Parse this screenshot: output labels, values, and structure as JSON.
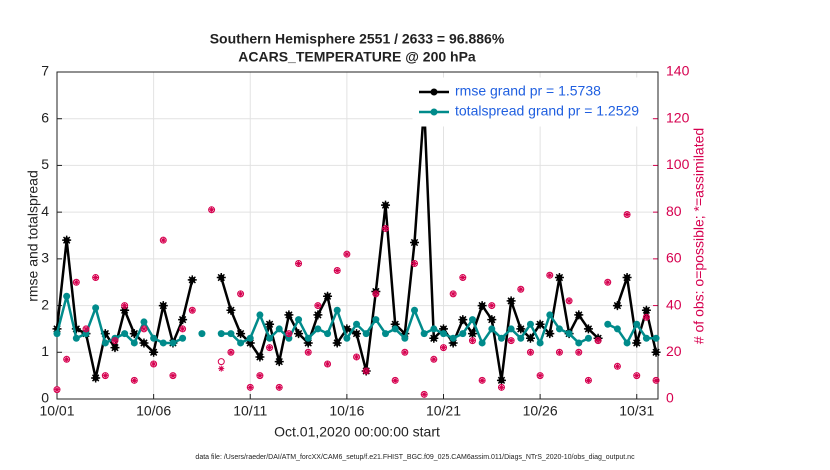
{
  "chart_data": {
    "type": "line",
    "title": "Southern Hemisphere 2551 / 2633 = 96.886%",
    "subtitle": "ACARS_TEMPERATURE @ 200 hPa",
    "xlabel": "Oct.01,2020 00:00:00 start",
    "ylabel": "rmse and totalspread",
    "y2label": "# of obs: o=possible; *=assimilated",
    "footnote": "data file: /Users/raeder/DAI/ATM_forcXX/CAM6_setup/f.e21.FHIST_BGC.f09_025.CAM6assim.011/Diags_NTrS_2020-10/obs_diag_output.nc",
    "xlim": [
      0,
      31.1
    ],
    "xticks": [
      {
        "value": 0,
        "label": "10/01"
      },
      {
        "value": 5,
        "label": "10/06"
      },
      {
        "value": 10,
        "label": "10/11"
      },
      {
        "value": 15,
        "label": "10/16"
      },
      {
        "value": 20,
        "label": "10/21"
      },
      {
        "value": 25,
        "label": "10/26"
      },
      {
        "value": 30,
        "label": "10/31"
      }
    ],
    "ylim": [
      0,
      7
    ],
    "yticks": [
      0,
      1,
      2,
      3,
      4,
      5,
      6,
      7
    ],
    "y2lim": [
      0,
      140
    ],
    "y2ticks": [
      0,
      20,
      40,
      60,
      80,
      100,
      120,
      140
    ],
    "grid": true,
    "legend": "upper right",
    "x": [
      0,
      0.5,
      1,
      1.5,
      2,
      2.5,
      3,
      3.5,
      4,
      4.5,
      5,
      5.5,
      6,
      6.5,
      7,
      7.5,
      8,
      8.5,
      9,
      9.5,
      10,
      10.5,
      11,
      11.5,
      12,
      12.5,
      13,
      13.5,
      14,
      14.5,
      15,
      15.5,
      16,
      16.5,
      17,
      17.5,
      18,
      18.5,
      19,
      19.5,
      20,
      20.5,
      21,
      21.5,
      22,
      22.5,
      23,
      23.5,
      24,
      24.5,
      25,
      25.5,
      26,
      26.5,
      27,
      27.5,
      28,
      28.5,
      29,
      29.5,
      30,
      30.5,
      31
    ],
    "series": [
      {
        "name": "rmse grand pr = 1.5738",
        "color": "#000000",
        "marker": "star",
        "values": [
          1.5,
          3.4,
          1.5,
          1.4,
          0.45,
          1.4,
          1.1,
          1.9,
          1.4,
          1.2,
          1.0,
          2.0,
          1.2,
          1.7,
          2.55,
          null,
          null,
          2.6,
          1.9,
          1.4,
          1.2,
          0.9,
          1.6,
          0.8,
          1.8,
          1.4,
          1.2,
          1.8,
          2.2,
          1.2,
          1.5,
          1.4,
          0.6,
          2.3,
          4.15,
          1.6,
          1.4,
          3.35,
          6.28,
          1.3,
          1.5,
          1.2,
          1.7,
          1.4,
          2.0,
          1.7,
          0.4,
          2.1,
          1.5,
          1.3,
          1.6,
          1.4,
          2.6,
          1.4,
          1.8,
          1.5,
          1.3,
          null,
          2.0,
          2.6,
          1.2,
          1.9,
          1.0
        ]
      },
      {
        "name": "totalspread grand pr = 1.2529",
        "color": "#008b8b",
        "marker": "circle",
        "values": [
          1.4,
          2.2,
          1.3,
          1.4,
          1.95,
          1.2,
          1.3,
          1.4,
          1.2,
          1.65,
          1.3,
          1.2,
          1.2,
          1.3,
          null,
          1.4,
          null,
          1.4,
          1.4,
          1.2,
          1.3,
          1.8,
          1.3,
          1.5,
          1.3,
          1.7,
          1.3,
          1.5,
          1.4,
          1.9,
          1.3,
          1.6,
          1.4,
          1.7,
          1.4,
          1.5,
          1.3,
          1.9,
          1.4,
          1.5,
          1.4,
          1.3,
          1.4,
          1.7,
          1.2,
          1.5,
          1.3,
          1.5,
          1.3,
          1.6,
          1.2,
          1.8,
          1.5,
          1.4,
          1.2,
          1.3,
          null,
          1.6,
          1.5,
          1.2,
          1.6,
          1.3,
          1.3
        ]
      },
      {
        "color": "#d6004f",
        "marker": "open-circle",
        "axis": "y2",
        "values": [
          4,
          17,
          50,
          30,
          52,
          10,
          25,
          40,
          8,
          30,
          15,
          68,
          10,
          30,
          38,
          null,
          81,
          16,
          20,
          45,
          5,
          10,
          22,
          5,
          28,
          58,
          20,
          40,
          15,
          55,
          62,
          18,
          12,
          45,
          73,
          8,
          20,
          58,
          2,
          17,
          22,
          45,
          52,
          25,
          8,
          40,
          5,
          25,
          47,
          20,
          10,
          53,
          20,
          42,
          20,
          8,
          25,
          50,
          14,
          79,
          10,
          35,
          8
        ]
      },
      {
        "color": "#d6004f",
        "marker": "asterisk",
        "axis": "y2",
        "values": [
          4,
          17,
          50,
          30,
          52,
          10,
          25,
          40,
          8,
          30,
          15,
          68,
          10,
          30,
          38,
          null,
          81,
          13,
          20,
          45,
          5,
          10,
          22,
          5,
          28,
          58,
          20,
          40,
          15,
          55,
          62,
          18,
          12,
          45,
          73,
          8,
          20,
          58,
          2,
          17,
          22,
          45,
          52,
          25,
          8,
          40,
          5,
          25,
          47,
          20,
          10,
          53,
          20,
          42,
          20,
          8,
          25,
          50,
          14,
          79,
          10,
          35,
          8
        ]
      }
    ]
  }
}
